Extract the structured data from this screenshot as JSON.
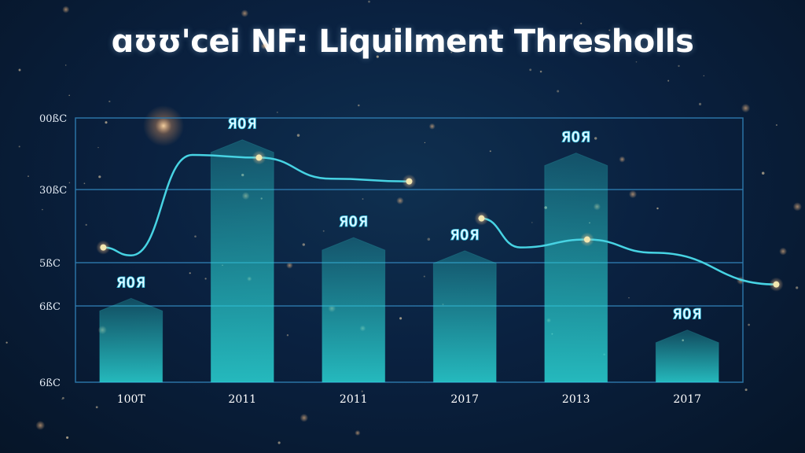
{
  "chart_data": {
    "type": "bar",
    "title": "ɑʊʊ'cei NF: Liquilment Thresholls",
    "xlabel": "",
    "ylabel": "",
    "categories": [
      "100T",
      "2011",
      "2011",
      "2017",
      "2013",
      "2017"
    ],
    "yticks": [
      "00ßC",
      "30ßC",
      "5ßC",
      "6ßC",
      "6ßC"
    ],
    "ylim": [
      0,
      100
    ],
    "grid": true,
    "series": [
      {
        "values": [
          27,
          87,
          50,
          45,
          82,
          15
        ]
      }
    ],
    "line": {
      "x": [
        0.25,
        0.5,
        1.05,
        1.65,
        2.3,
        3.0,
        3.65,
        4.0,
        4.6,
        5.2,
        6.3
      ],
      "y": [
        51,
        48,
        86,
        85,
        77,
        76,
        62,
        51,
        54,
        49,
        37
      ],
      "markers": [
        0,
        3,
        5,
        6,
        8,
        10
      ]
    },
    "data_labels": [
      "ЯОЯ",
      "ЯОЯ",
      "ЯОЯ",
      "ЯОЯ",
      "ЯОЯ",
      "ЯОЯ"
    ],
    "colors": {
      "bar": "#23c9c9",
      "line": "#47d3e3",
      "grid": "#2f7cb0",
      "marker": "#f3e7b0"
    }
  }
}
